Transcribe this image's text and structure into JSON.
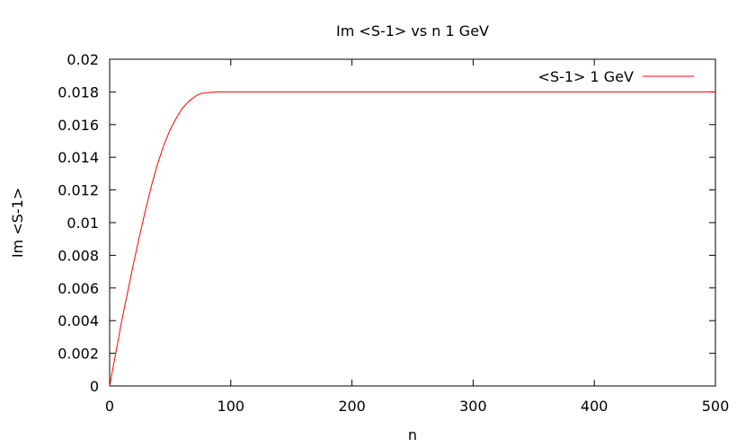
{
  "chart_data": {
    "type": "line",
    "title": "Im <S-1> vs n 1 GeV",
    "xlabel": "n",
    "ylabel": "Im <S-1>",
    "xlim": [
      0,
      500
    ],
    "ylim": [
      0,
      0.02
    ],
    "x_ticks": [
      0,
      100,
      200,
      300,
      400,
      500
    ],
    "y_ticks": [
      0,
      0.002,
      0.004,
      0.006,
      0.008,
      0.01,
      0.012,
      0.014,
      0.016,
      0.018,
      0.02
    ],
    "x_tick_labels": [
      "0",
      "100",
      "200",
      "300",
      "400",
      "500"
    ],
    "y_tick_labels": [
      "0",
      "0.002",
      "0.004",
      "0.006",
      "0.008",
      "0.01",
      "0.012",
      "0.014",
      "0.016",
      "0.018",
      "0.02"
    ],
    "grid": false,
    "legend_position": "top-right",
    "series": [
      {
        "name": "<S-1> 1  GeV",
        "color": "#ff0000",
        "x": [
          0,
          2,
          5,
          10,
          15,
          20,
          25,
          30,
          35,
          40,
          45,
          50,
          55,
          60,
          65,
          70,
          75,
          80,
          85,
          90,
          100,
          110,
          120,
          140,
          160,
          200,
          250,
          300,
          350,
          400,
          450,
          500
        ],
        "y": [
          0,
          0.0008,
          0.002,
          0.004,
          0.0058,
          0.0076,
          0.0093,
          0.0109,
          0.0124,
          0.0137,
          0.0148,
          0.0157,
          0.0164,
          0.017,
          0.0174,
          0.0177,
          0.0179,
          0.01795,
          0.01798,
          0.018,
          0.018,
          0.018,
          0.018,
          0.018,
          0.018,
          0.018,
          0.018,
          0.018,
          0.018,
          0.018,
          0.018,
          0.018
        ]
      }
    ]
  }
}
